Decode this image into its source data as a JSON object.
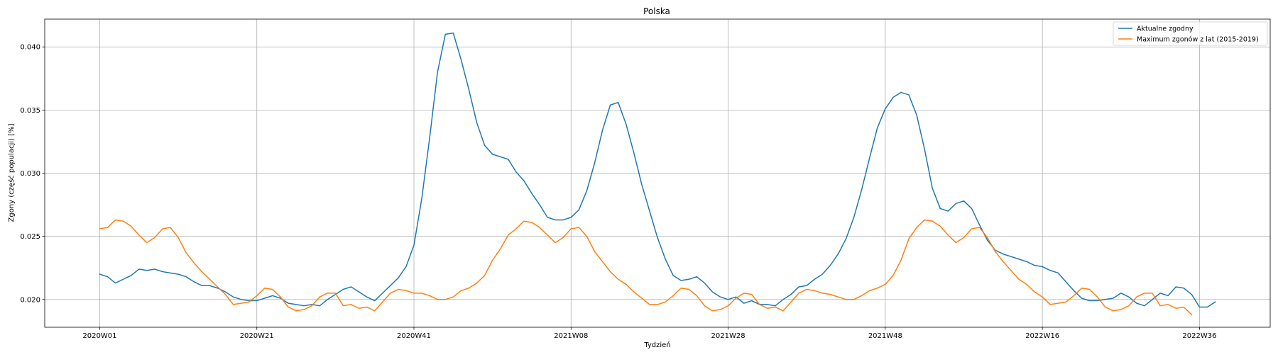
{
  "chart_data": {
    "type": "line",
    "title": "Polska",
    "xlabel": "Tydzień",
    "ylabel": "Zgony (część populacji) [%]",
    "xlim": [
      -7,
      149
    ],
    "ylim": [
      0.0178,
      0.0422
    ],
    "grid": true,
    "legend_position": "top-right",
    "x_ticks": [
      {
        "index": 0,
        "label": "2020W01"
      },
      {
        "index": 20,
        "label": "2020W21"
      },
      {
        "index": 40,
        "label": "2020W41"
      },
      {
        "index": 60,
        "label": "2021W08"
      },
      {
        "index": 80,
        "label": "2021W28"
      },
      {
        "index": 100,
        "label": "2021W48"
      },
      {
        "index": 120,
        "label": "2022W16"
      },
      {
        "index": 140,
        "label": "2022W36"
      }
    ],
    "y_ticks": [
      {
        "value": 0.02,
        "label": "0.020"
      },
      {
        "value": 0.025,
        "label": "0.025"
      },
      {
        "value": 0.03,
        "label": "0.030"
      },
      {
        "value": 0.035,
        "label": "0.035"
      },
      {
        "value": 0.04,
        "label": "0.040"
      }
    ],
    "series": [
      {
        "name": "Aktualne zgodny",
        "color": "#1f77b4",
        "values": [
          0.022,
          0.0218,
          0.0213,
          0.0216,
          0.0219,
          0.0224,
          0.0223,
          0.0224,
          0.0222,
          0.0221,
          0.022,
          0.0218,
          0.0214,
          0.0211,
          0.0211,
          0.0209,
          0.0206,
          0.0202,
          0.02,
          0.0199,
          0.0199,
          0.0201,
          0.0203,
          0.0201,
          0.0197,
          0.0196,
          0.0195,
          0.0196,
          0.0195,
          0.02,
          0.0204,
          0.0208,
          0.021,
          0.0206,
          0.0202,
          0.0199,
          0.0205,
          0.0211,
          0.0217,
          0.0226,
          0.0243,
          0.028,
          0.0328,
          0.038,
          0.041,
          0.0411,
          0.039,
          0.0366,
          0.034,
          0.0322,
          0.0315,
          0.0313,
          0.0311,
          0.0301,
          0.0294,
          0.0284,
          0.0275,
          0.0265,
          0.0263,
          0.0263,
          0.0265,
          0.0271,
          0.0286,
          0.0308,
          0.0334,
          0.0354,
          0.0356,
          0.0339,
          0.0316,
          0.0291,
          0.027,
          0.0249,
          0.0232,
          0.0219,
          0.0215,
          0.0216,
          0.0218,
          0.0213,
          0.0206,
          0.0202,
          0.02,
          0.0202,
          0.0197,
          0.0199,
          0.0196,
          0.0196,
          0.0195,
          0.02,
          0.0204,
          0.021,
          0.0211,
          0.0216,
          0.022,
          0.0227,
          0.0236,
          0.0248,
          0.0265,
          0.0287,
          0.0312,
          0.0336,
          0.0351,
          0.036,
          0.0364,
          0.0362,
          0.0346,
          0.0319,
          0.0288,
          0.0272,
          0.027,
          0.0276,
          0.0278,
          0.0272,
          0.0259,
          0.0247,
          0.0239,
          0.0236,
          0.0234,
          0.0232,
          0.023,
          0.0227,
          0.0226,
          0.0223,
          0.0221,
          0.0214,
          0.0207,
          0.0201,
          0.0199,
          0.0199,
          0.02,
          0.0201,
          0.0205,
          0.0202,
          0.0197,
          0.0195,
          0.02,
          0.0205,
          0.0203,
          0.021,
          0.0209,
          0.0204,
          0.0194,
          0.0194,
          0.0198
        ]
      },
      {
        "name": "Maximum zgonów z lat (2015-2019)",
        "color": "#ff7f0e",
        "values": [
          0.0256,
          0.0257,
          0.0263,
          0.0262,
          0.0258,
          0.0251,
          0.0245,
          0.0249,
          0.0256,
          0.0257,
          0.0249,
          0.0237,
          0.0229,
          0.0222,
          0.0216,
          0.021,
          0.0204,
          0.0196,
          0.0197,
          0.0198,
          0.0203,
          0.0209,
          0.0208,
          0.0202,
          0.0194,
          0.0191,
          0.0192,
          0.0195,
          0.0202,
          0.0205,
          0.0205,
          0.0195,
          0.0196,
          0.0193,
          0.0194,
          0.0191,
          0.0198,
          0.0205,
          0.0208,
          0.0207,
          0.0205,
          0.0205,
          0.0203,
          0.02,
          0.02,
          0.0202,
          0.0207,
          0.0209,
          0.0213,
          0.0219,
          0.0231,
          0.024,
          0.0251,
          0.0256,
          0.0262,
          0.0261,
          0.0257,
          0.0251,
          0.0245,
          0.0249,
          0.0256,
          0.0257,
          0.025,
          0.0238,
          0.023,
          0.0222,
          0.0216,
          0.0212,
          0.0206,
          0.0201,
          0.0196,
          0.0196,
          0.0198,
          0.0203,
          0.0209,
          0.0208,
          0.0203,
          0.0195,
          0.0191,
          0.0192,
          0.0195,
          0.0201,
          0.0205,
          0.0204,
          0.0196,
          0.0193,
          0.0194,
          0.0191,
          0.0198,
          0.0205,
          0.0208,
          0.0207,
          0.0205,
          0.0204,
          0.0202,
          0.02,
          0.02,
          0.0203,
          0.0207,
          0.0209,
          0.0212,
          0.0219,
          0.0231,
          0.0248,
          0.0257,
          0.0263,
          0.0262,
          0.0258,
          0.0251,
          0.0245,
          0.0249,
          0.0256,
          0.0257,
          0.0249,
          0.0238,
          0.023,
          0.0223,
          0.0216,
          0.0212,
          0.0206,
          0.0202,
          0.0196,
          0.0197,
          0.0198,
          0.0203,
          0.0209,
          0.0208,
          0.0202,
          0.0194,
          0.0191,
          0.0192,
          0.0195,
          0.0202,
          0.0205,
          0.0205,
          0.0195,
          0.0196,
          0.0193,
          0.0194,
          0.0188
        ]
      }
    ]
  }
}
